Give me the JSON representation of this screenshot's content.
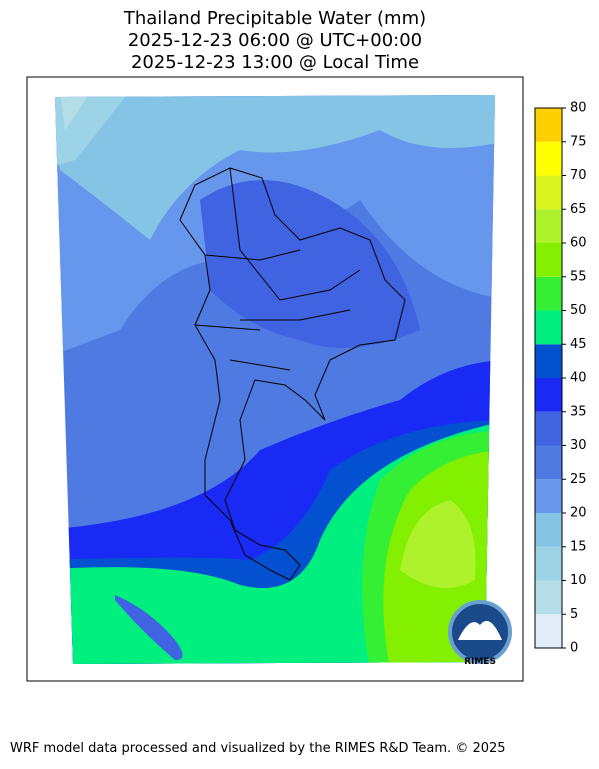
{
  "title": [
    "Thailand Precipitable Water (mm)",
    "2025-12-23 06:00 @ UTC+00:00",
    "2025-12-23 13:00 @ Local Time"
  ],
  "colorbar": {
    "ticks": [
      0,
      5,
      10,
      15,
      20,
      25,
      30,
      35,
      40,
      45,
      50,
      55,
      60,
      65,
      70,
      75,
      80
    ],
    "colors": [
      "#e1eef8",
      "#b4dde8",
      "#9dd3e6",
      "#86c4e6",
      "#6797ec",
      "#4e7ae2",
      "#4063e2",
      "#1a2af5",
      "#0350d0",
      "#00ef7f",
      "#35ef35",
      "#82f000",
      "#aef22c",
      "#d9f51f",
      "#ffff00",
      "#ffd000"
    ]
  },
  "logo_text": "RIMES",
  "footer": "WRF model data processed and visualized by the RIMES R&D Team. © 2025"
}
